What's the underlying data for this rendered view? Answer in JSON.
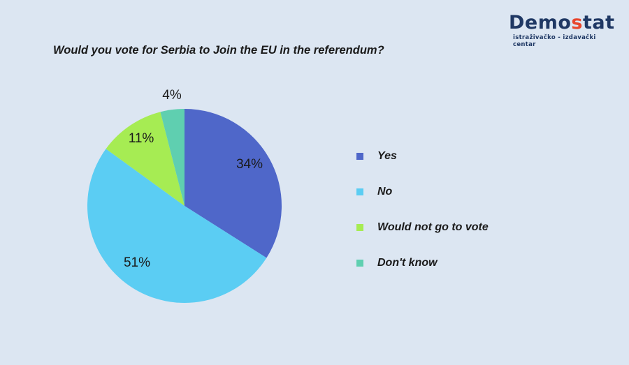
{
  "logo": {
    "main_prefix": "Demo",
    "main_accent": "s",
    "main_suffix": "tat",
    "subtitle": "istraživačko - izdavački centar"
  },
  "chart_data": {
    "type": "pie",
    "title": "Would you vote for Serbia to Join the EU in the referendum?",
    "slices": [
      {
        "label": "Yes",
        "value": 34,
        "display": "34%",
        "color": "#4f67c9"
      },
      {
        "label": "No",
        "value": 51,
        "display": "51%",
        "color": "#5bcdf3"
      },
      {
        "label": "Would not go to vote",
        "value": 11,
        "display": "11%",
        "color": "#a6ec53"
      },
      {
        "label": "Don't know",
        "value": 4,
        "display": "4%",
        "color": "#5fcfb0"
      }
    ],
    "legend_position": "right"
  }
}
